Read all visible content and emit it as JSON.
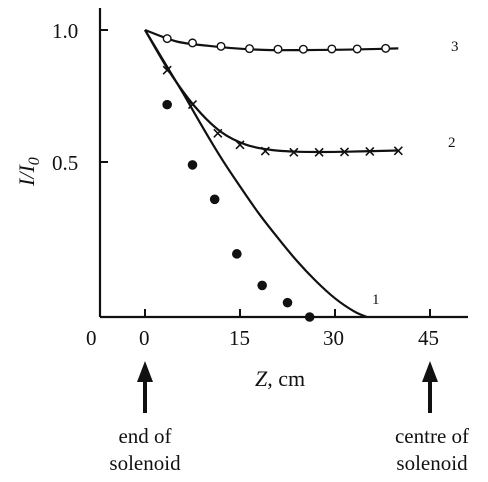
{
  "chart_data": {
    "type": "line",
    "xlabel_var": "Z",
    "xlabel_unit": ", cm",
    "ylabel": "I/I",
    "ylabel_sub": "0",
    "xlim": [
      -15,
      52
    ],
    "ylim": [
      0.0,
      1.08
    ],
    "xticks": [
      {
        "value": 0,
        "label": "0"
      },
      {
        "value": 15,
        "label": "15"
      },
      {
        "value": 30,
        "label": "30"
      },
      {
        "value": 45,
        "label": "45"
      }
    ],
    "origin_label": "0",
    "yticks": [
      {
        "value": 0.5,
        "label": "0.5"
      },
      {
        "value": 1.0,
        "label": "1.0"
      }
    ],
    "grid": false,
    "legend": "none",
    "series": [
      {
        "name": "1",
        "marker": "filled-circle",
        "curve": [
          [
            0,
            1.0
          ],
          [
            3,
            0.89
          ],
          [
            6,
            0.78
          ],
          [
            9,
            0.665
          ],
          [
            12,
            0.555
          ],
          [
            15,
            0.455
          ],
          [
            18,
            0.36
          ],
          [
            21,
            0.275
          ],
          [
            24,
            0.195
          ],
          [
            27,
            0.125
          ],
          [
            30,
            0.065
          ],
          [
            33,
            0.02
          ],
          [
            35,
            0.0
          ]
        ],
        "points": [
          [
            3.5,
            0.74
          ],
          [
            7.5,
            0.53
          ],
          [
            11.0,
            0.41
          ],
          [
            14.5,
            0.22
          ],
          [
            18.5,
            0.11
          ],
          [
            22.5,
            0.05
          ],
          [
            26.0,
            0.0
          ]
        ]
      },
      {
        "name": "2",
        "marker": "cross",
        "curve": [
          [
            0,
            1.0
          ],
          [
            4,
            0.85
          ],
          [
            8,
            0.73
          ],
          [
            12,
            0.645
          ],
          [
            16,
            0.6
          ],
          [
            20,
            0.582
          ],
          [
            24,
            0.576
          ],
          [
            28,
            0.575
          ],
          [
            32,
            0.576
          ],
          [
            36,
            0.578
          ],
          [
            40,
            0.58
          ]
        ],
        "points": [
          [
            3.5,
            0.86
          ],
          [
            7.5,
            0.74
          ],
          [
            11.5,
            0.64
          ],
          [
            15.0,
            0.6
          ],
          [
            19.0,
            0.578
          ],
          [
            23.5,
            0.574
          ],
          [
            27.5,
            0.574
          ],
          [
            31.5,
            0.575
          ],
          [
            35.5,
            0.577
          ],
          [
            40.0,
            0.579
          ]
        ]
      },
      {
        "name": "3",
        "marker": "open-circle",
        "curve": [
          [
            0,
            1.0
          ],
          [
            5,
            0.96
          ],
          [
            10,
            0.945
          ],
          [
            15,
            0.935
          ],
          [
            20,
            0.93
          ],
          [
            25,
            0.93
          ],
          [
            30,
            0.931
          ],
          [
            35,
            0.933
          ],
          [
            40,
            0.936
          ]
        ],
        "points": [
          [
            3.5,
            0.97
          ],
          [
            7.5,
            0.955
          ],
          [
            12.0,
            0.943
          ],
          [
            16.5,
            0.935
          ],
          [
            21.0,
            0.933
          ],
          [
            25.0,
            0.933
          ],
          [
            29.5,
            0.934
          ],
          [
            33.5,
            0.934
          ],
          [
            38.0,
            0.936
          ]
        ]
      }
    ]
  },
  "annotations": {
    "left_arrow_line1": "end of",
    "left_arrow_line2": "solenoid",
    "right_arrow_line1": "centre of",
    "right_arrow_line2": "solenoid"
  }
}
